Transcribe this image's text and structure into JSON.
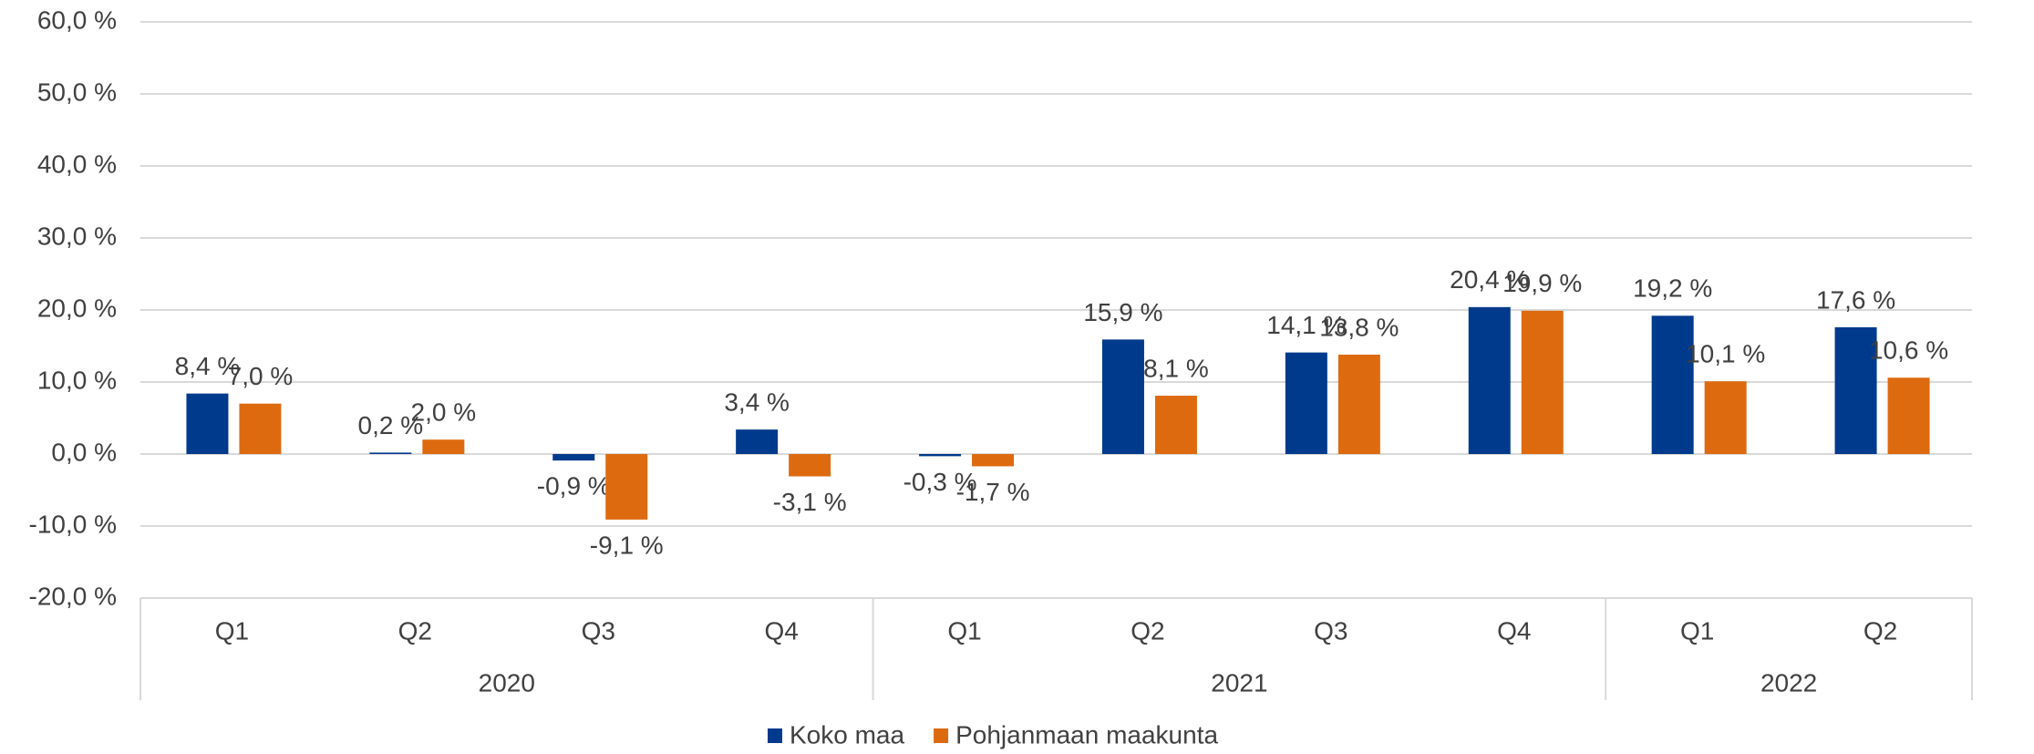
{
  "chart_data": {
    "type": "bar",
    "categories": [
      "Q1",
      "Q2",
      "Q3",
      "Q4",
      "Q1",
      "Q2",
      "Q3",
      "Q4",
      "Q1",
      "Q2"
    ],
    "group_labels": [
      "2020",
      "2021",
      "2022"
    ],
    "group_sizes": [
      4,
      4,
      2
    ],
    "series": [
      {
        "name": "Koko maa",
        "color": "#003a8c",
        "values": [
          8.4,
          0.2,
          -0.9,
          3.4,
          -0.3,
          15.9,
          14.1,
          20.4,
          19.2,
          17.6
        ],
        "value_labels": [
          "8,4 %",
          "0,2 %",
          "-0,9 %",
          "3,4 %",
          "-0,3 %",
          "15,9 %",
          "14,1 %",
          "20,4 %",
          "19,2 %",
          "17,6 %"
        ]
      },
      {
        "name": "Pohjanmaan maakunta",
        "color": "#de6a10",
        "values": [
          7.0,
          2.0,
          -9.1,
          -3.1,
          -1.7,
          8.1,
          13.8,
          19.9,
          10.1,
          10.6
        ],
        "value_labels": [
          "7,0 %",
          "2,0 %",
          "-9,1 %",
          "-3,1 %",
          "-1,7 %",
          "8,1 %",
          "13,8 %",
          "19,9 %",
          "10,1 %",
          "10,6 %"
        ]
      }
    ],
    "ylim": [
      -20,
      60
    ],
    "yticks": [
      {
        "value": -20,
        "label": "-20,0 %"
      },
      {
        "value": -10,
        "label": "-10,0 %"
      },
      {
        "value": 0,
        "label": "0,0 %"
      },
      {
        "value": 10,
        "label": "10,0 %"
      },
      {
        "value": 20,
        "label": "20,0 %"
      },
      {
        "value": 30,
        "label": "30,0 %"
      },
      {
        "value": 40,
        "label": "40,0 %"
      },
      {
        "value": 50,
        "label": "50,0 %"
      },
      {
        "value": 60,
        "label": "60,0 %"
      }
    ],
    "grid": true,
    "legend": "bottom"
  }
}
